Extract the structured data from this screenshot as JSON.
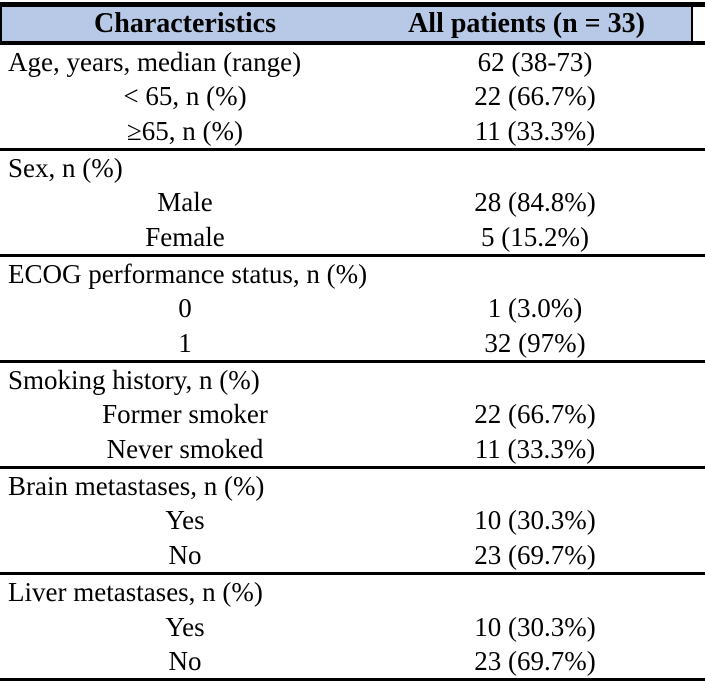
{
  "table": {
    "accent_color": "#b7c9e6",
    "rule_color": "#000000",
    "header": {
      "col1": "Characteristics",
      "col2": "All patients (n = 33)"
    },
    "sections": [
      {
        "rows": [
          {
            "label": "Age, years, median (range)",
            "value": "62 (38-73)",
            "indent": false
          },
          {
            "label": "< 65, n (%)",
            "value": "22 (66.7%)",
            "indent": true
          },
          {
            "label": "≥65, n (%)",
            "value": "11 (33.3%)",
            "indent": true
          }
        ]
      },
      {
        "rows": [
          {
            "label": "Sex, n (%)",
            "value": "",
            "indent": false
          },
          {
            "label": "Male",
            "value": "28 (84.8%)",
            "indent": true
          },
          {
            "label": "Female",
            "value": "5 (15.2%)",
            "indent": true
          }
        ]
      },
      {
        "rows": [
          {
            "label": "ECOG performance status, n (%)",
            "value": "",
            "indent": false
          },
          {
            "label": "0",
            "value": "1 (3.0%)",
            "indent": true
          },
          {
            "label": "1",
            "value": "32 (97%)",
            "indent": true
          }
        ]
      },
      {
        "rows": [
          {
            "label": "Smoking history, n (%)",
            "value": "",
            "indent": false
          },
          {
            "label": "Former smoker",
            "value": "22 (66.7%)",
            "indent": true
          },
          {
            "label": "Never smoked",
            "value": "11 (33.3%)",
            "indent": true
          }
        ]
      },
      {
        "rows": [
          {
            "label": "Brain metastases, n (%)",
            "value": "",
            "indent": false
          },
          {
            "label": "Yes",
            "value": "10 (30.3%)",
            "indent": true
          },
          {
            "label": "No",
            "value": "23 (69.7%)",
            "indent": true
          }
        ]
      },
      {
        "rows": [
          {
            "label": "Liver metastases, n (%)",
            "value": "",
            "indent": false
          },
          {
            "label": "Yes",
            "value": "10 (30.3%)",
            "indent": true
          },
          {
            "label": "No",
            "value": "23 (69.7%)",
            "indent": true
          }
        ]
      }
    ]
  }
}
